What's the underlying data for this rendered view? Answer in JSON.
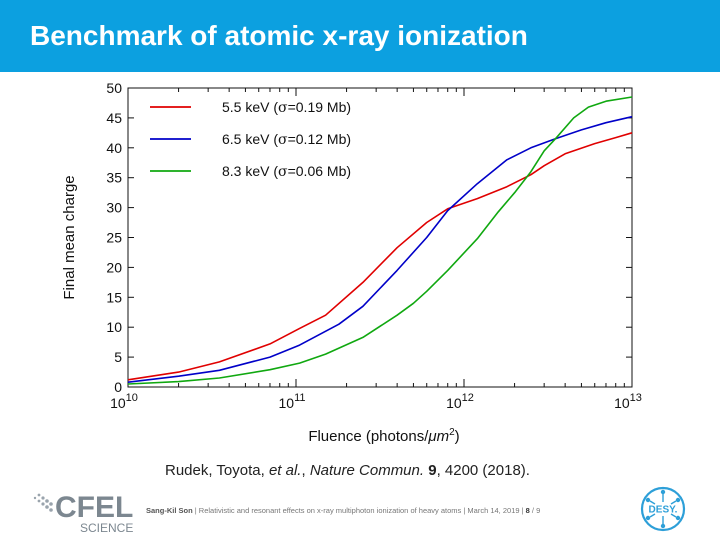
{
  "header": {
    "title": "Benchmark of atomic x-ray ionization",
    "bg_color": "#0ca0e0"
  },
  "chart_data": {
    "type": "line",
    "xscale": "log",
    "xlim": [
      10000000000.0,
      10000000000000.0
    ],
    "ylim": [
      0,
      50
    ],
    "xlabel": "Fluence (photons/μm²)",
    "xlabel_parts": {
      "main": "Fluence (photons/",
      "unit": "μm",
      "sup": "2",
      "close": ")"
    },
    "ylabel": "Final mean charge",
    "x_ticks": [
      {
        "value": 10000000000.0,
        "base": "10",
        "exp": "10"
      },
      {
        "value": 100000000000.0,
        "base": "10",
        "exp": "11"
      },
      {
        "value": 1000000000000.0,
        "base": "10",
        "exp": "12"
      },
      {
        "value": 10000000000000.0,
        "base": "10",
        "exp": "13"
      }
    ],
    "y_ticks": [
      0,
      5,
      10,
      15,
      20,
      25,
      30,
      35,
      40,
      45,
      50
    ],
    "legend_position": "top-left",
    "series": [
      {
        "name": "5.5 keV (σ=0.19 Mb)",
        "name_parts": [
          "5.5 keV (",
          "σ",
          "=0.19 Mb)"
        ],
        "color": "#e00000",
        "x": [
          10000000000.0,
          20000000000.0,
          35000000000.0,
          70000000000.0,
          105000000000.0,
          150000000000.0,
          250000000000.0,
          400000000000.0,
          600000000000.0,
          800000000000.0,
          1200000000000.0,
          1800000000000.0,
          2500000000000.0,
          3000000000000.0,
          4000000000000.0,
          6000000000000.0,
          8000000000000.0,
          10000000000000.0
        ],
        "y": [
          1.2,
          2.5,
          4.2,
          7.2,
          9.8,
          12.0,
          17.5,
          23.3,
          27.5,
          29.8,
          31.5,
          33.5,
          35.5,
          37.0,
          39.0,
          40.7,
          41.7,
          42.5
        ]
      },
      {
        "name": "6.5 keV (σ=0.12 Mb)",
        "name_parts": [
          "6.5 keV (",
          "σ",
          "=0.12 Mb)"
        ],
        "color": "#0000c8",
        "x": [
          10000000000.0,
          20000000000.0,
          35000000000.0,
          70000000000.0,
          105000000000.0,
          180000000000.0,
          250000000000.0,
          400000000000.0,
          600000000000.0,
          800000000000.0,
          1200000000000.0,
          1800000000000.0,
          2500000000000.0,
          3500000000000.0,
          5000000000000.0,
          7000000000000.0,
          10000000000000.0
        ],
        "y": [
          0.8,
          1.8,
          2.8,
          5.0,
          7.0,
          10.5,
          13.5,
          19.5,
          25.0,
          29.5,
          34.0,
          38.0,
          40.0,
          41.5,
          43.0,
          44.2,
          45.2
        ]
      },
      {
        "name": "8.3 keV (σ=0.06 Mb)",
        "name_parts": [
          "8.3 keV (",
          "σ",
          "=0.06 Mb)"
        ],
        "color": "#10a810",
        "x": [
          10000000000.0,
          20000000000.0,
          35000000000.0,
          70000000000.0,
          105000000000.0,
          150000000000.0,
          250000000000.0,
          400000000000.0,
          500000000000.0,
          600000000000.0,
          800000000000.0,
          1200000000000.0,
          1600000000000.0,
          2000000000000.0,
          2500000000000.0,
          3000000000000.0,
          3500000000000.0,
          4500000000000.0,
          5500000000000.0,
          7000000000000.0,
          10000000000000.0
        ],
        "y": [
          0.5,
          0.9,
          1.5,
          2.9,
          4.0,
          5.5,
          8.3,
          12.0,
          14.0,
          16.0,
          19.5,
          24.8,
          29.3,
          32.5,
          36.0,
          39.5,
          41.5,
          45.0,
          46.8,
          47.8,
          48.5
        ]
      }
    ]
  },
  "citation": {
    "authors": "Rudek, Toyota, ",
    "etal": "et al.",
    "sep": ", ",
    "journal": "Nature Commun.",
    "space": " ",
    "volume": "9",
    "rest": ", 4200 (2018)."
  },
  "footer": {
    "author": "Sang-Kil Son",
    "sep1": " | ",
    "talk": "Relativistic and resonant effects on x-ray multiphoton ionization of heavy atoms",
    "sep2": " | ",
    "date": "March 14, 2019",
    "sep3": " | ",
    "page": "8",
    "slash": " / ",
    "total": "9"
  },
  "logos": {
    "cfel_main": "CFEL",
    "cfel_sub": "SCIENCE",
    "desy": "DESY.",
    "desy_color": "#2d9fd8"
  }
}
